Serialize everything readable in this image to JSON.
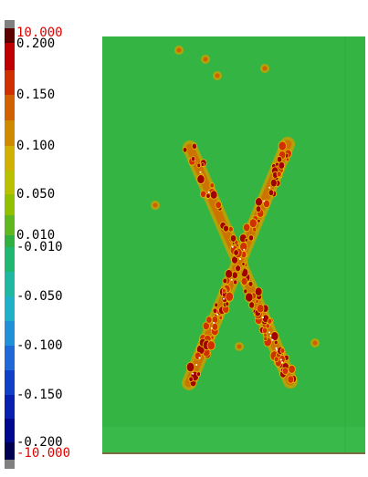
{
  "legend": {
    "labels": [
      "10.000",
      "0.200",
      "0.150",
      "0.100",
      "0.050",
      "0.010",
      "-0.010",
      "-0.050",
      "-0.100",
      "-0.150",
      "-0.200",
      "-10.000"
    ]
  }
}
